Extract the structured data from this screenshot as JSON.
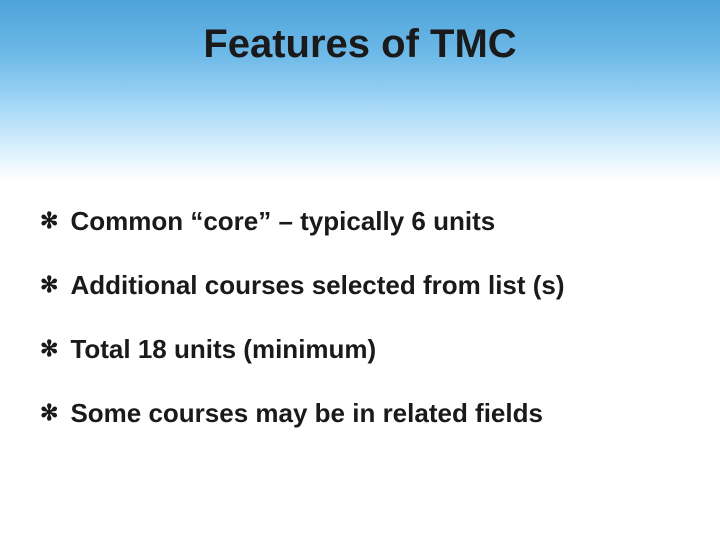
{
  "slide": {
    "title": "Features of TMC",
    "title_fontsize": 40,
    "title_color": "#1a1a1a",
    "header_gradient": {
      "stops": [
        "#4da3d9",
        "#6db9e8",
        "#9dd4f5",
        "#d4edfc",
        "#ffffff"
      ],
      "positions": [
        0,
        30,
        55,
        80,
        100
      ]
    },
    "background_color": "#ffffff",
    "bullet_marker": "✻",
    "bullet_fontsize": 26,
    "bullet_color": "#1a1a1a",
    "bullet_spacing": 32,
    "bullets": [
      "Common “core” – typically 6 units",
      "Additional courses selected from list (s)",
      "Total 18 units (minimum)",
      "Some courses may be in related fields"
    ]
  }
}
